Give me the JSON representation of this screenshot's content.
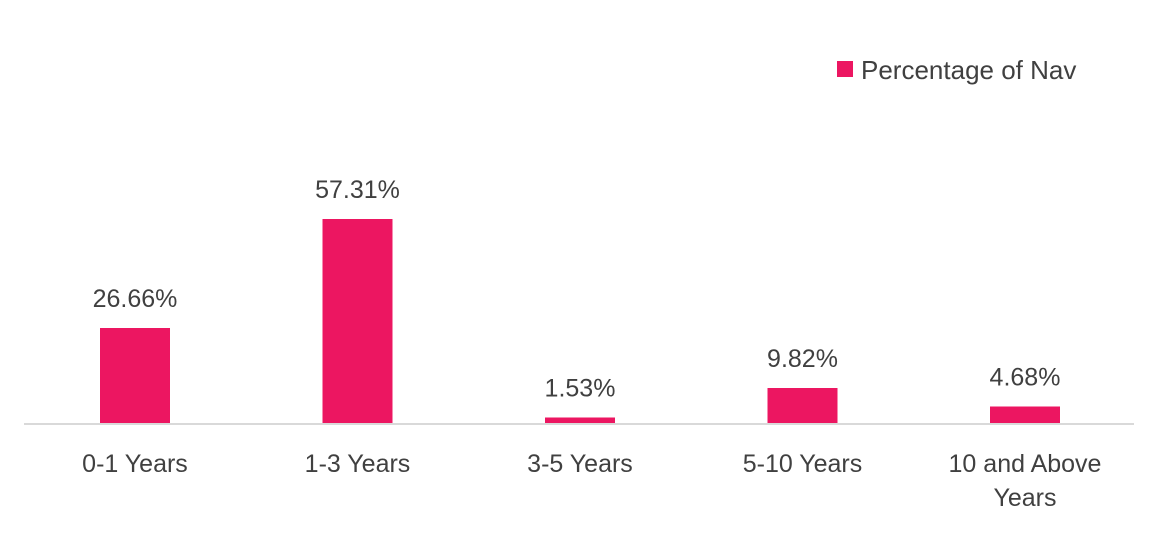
{
  "chart_data": {
    "type": "bar",
    "categories": [
      [
        "0-1 Years"
      ],
      [
        "1-3 Years"
      ],
      [
        "3-5 Years"
      ],
      [
        "5-10 Years"
      ],
      [
        "10 and Above",
        "Years"
      ]
    ],
    "series": [
      {
        "name": "Percentage of Nav",
        "values": [
          26.66,
          57.31,
          1.53,
          9.82,
          4.68
        ],
        "labels": [
          "26.66%",
          "57.31%",
          "1.53%",
          "9.82%",
          "4.68%"
        ],
        "color": "#EC1661"
      }
    ],
    "title": "",
    "xlabel": "",
    "ylabel": "",
    "ylim": [
      0,
      57.31
    ],
    "grid": false,
    "legend": "top-right"
  }
}
